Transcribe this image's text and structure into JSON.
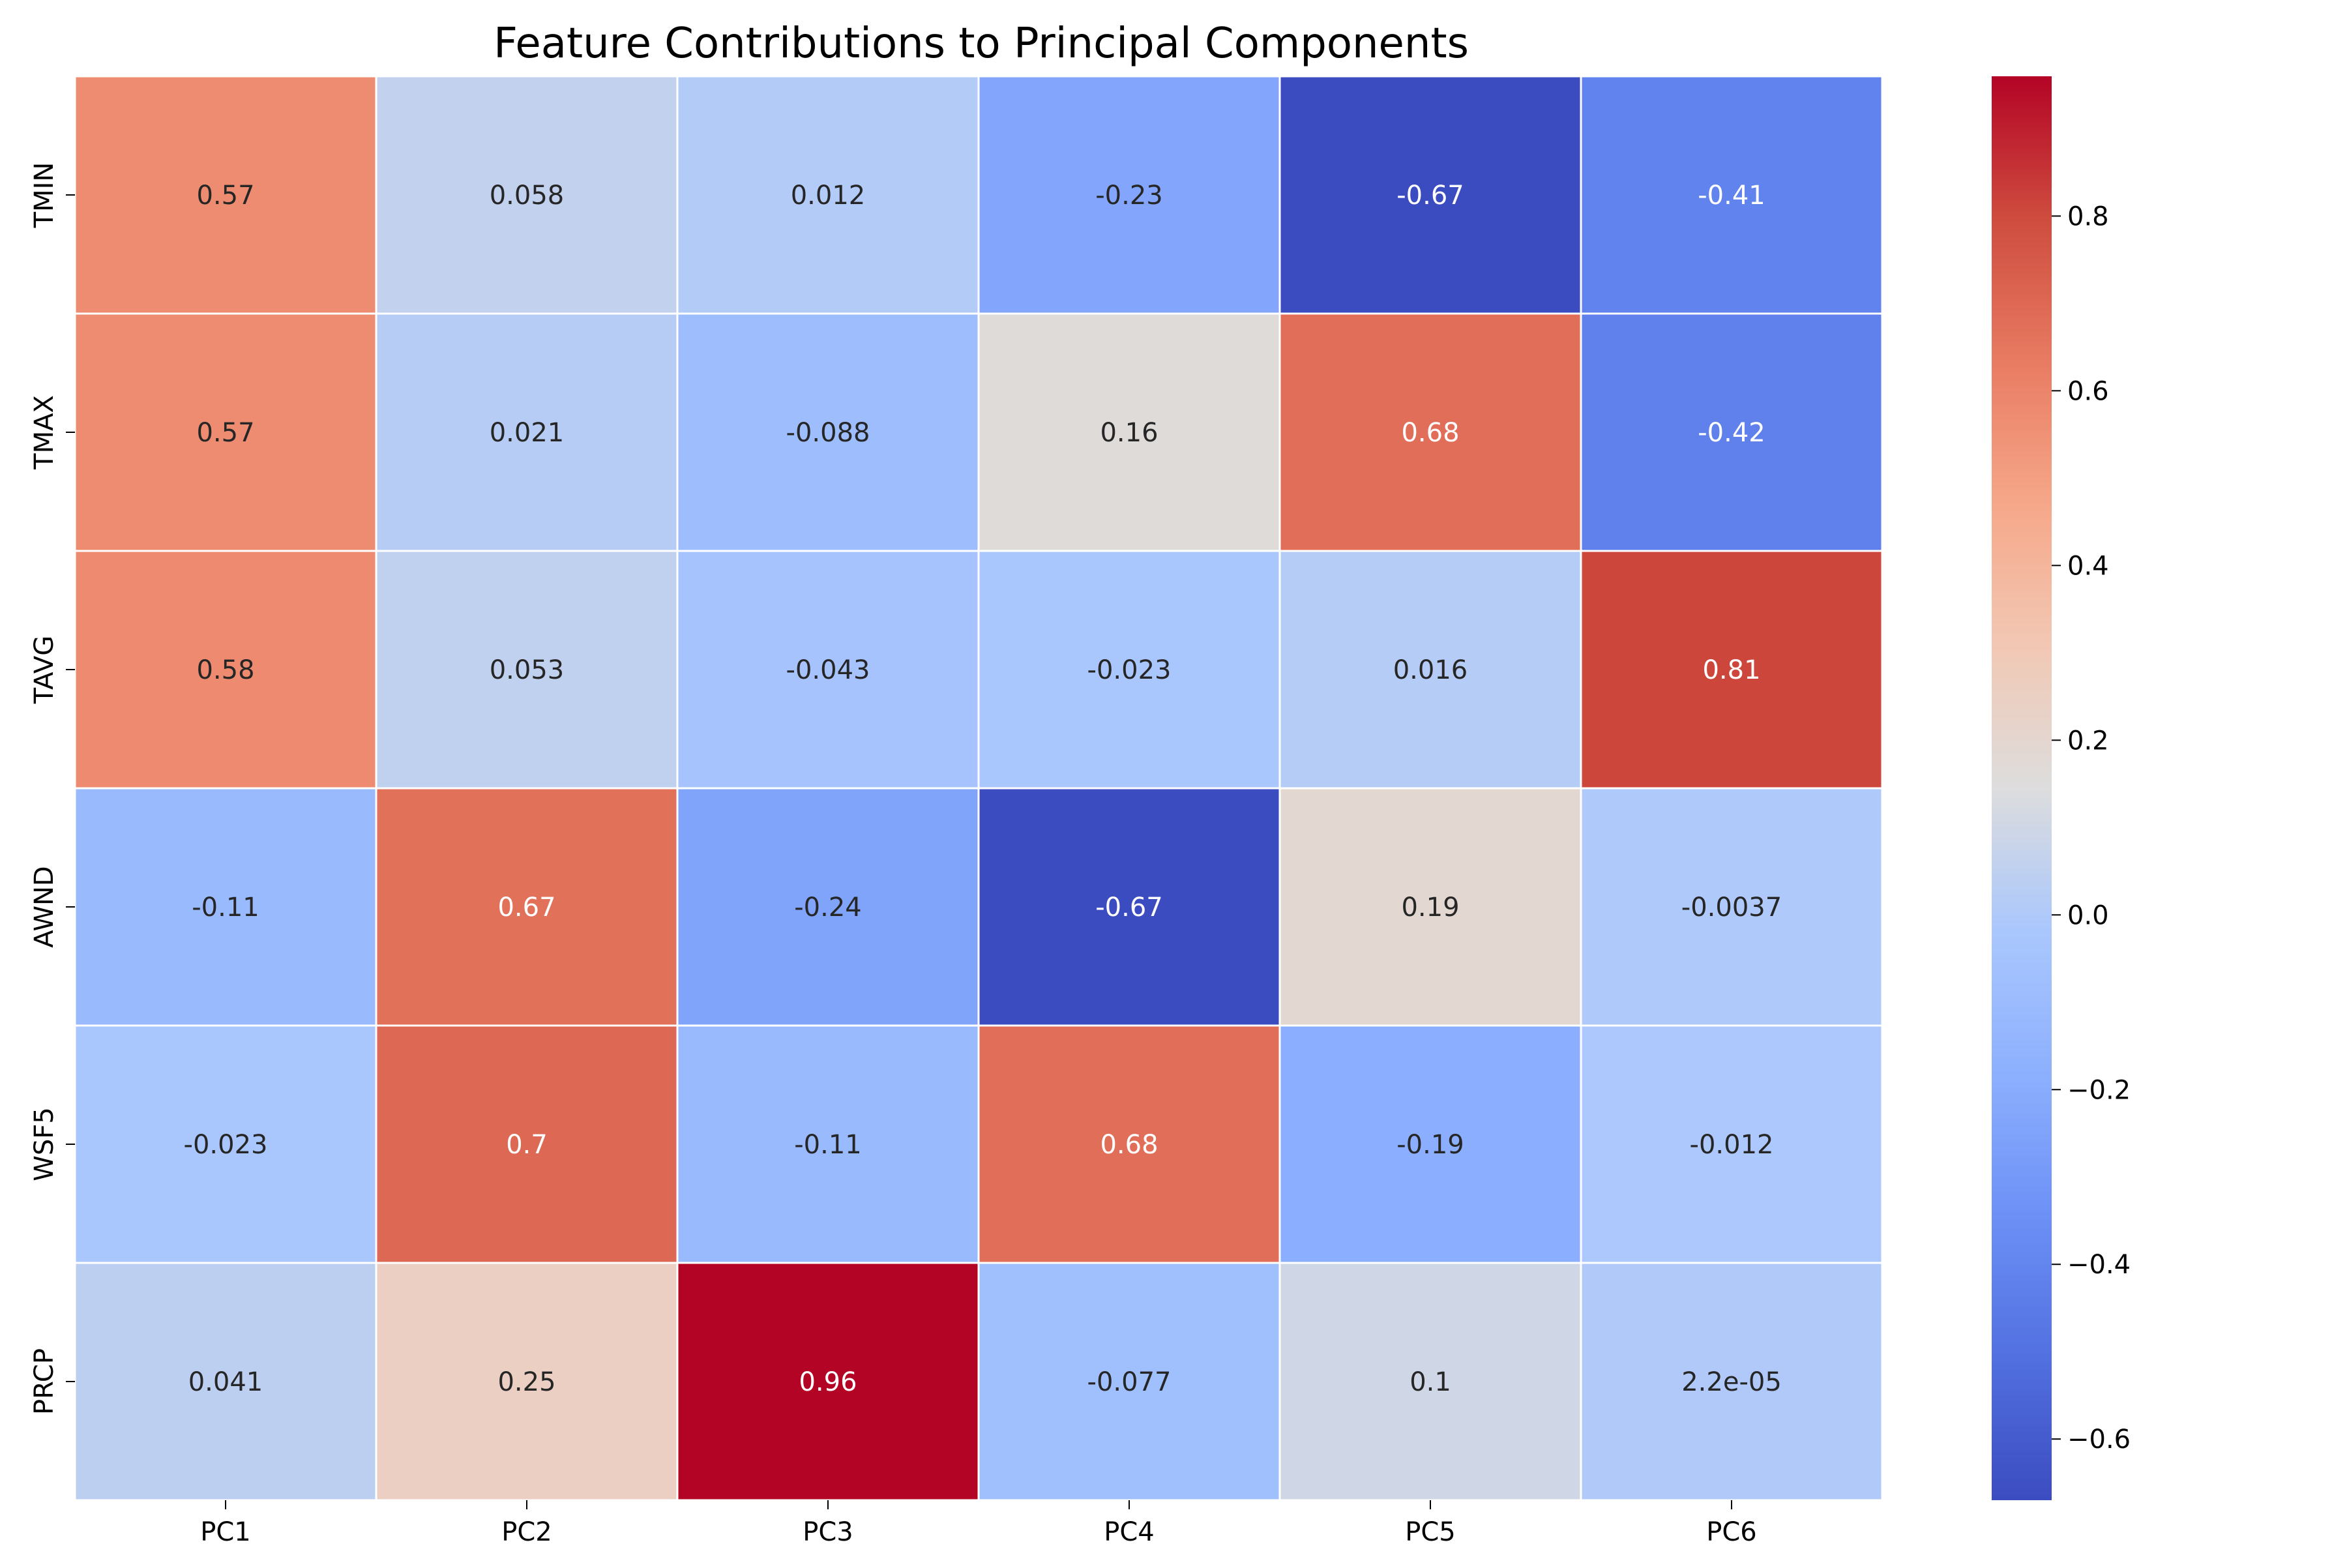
{
  "chart_data": {
    "type": "heatmap",
    "title": "Feature Contributions to Principal Components",
    "columns": [
      "PC1",
      "PC2",
      "PC3",
      "PC4",
      "PC5",
      "PC6"
    ],
    "rows": [
      "TMIN",
      "TMAX",
      "TAVG",
      "AWND",
      "WSF5",
      "PRCP"
    ],
    "values": [
      [
        0.57,
        0.058,
        0.012,
        -0.23,
        -0.67,
        -0.41
      ],
      [
        0.57,
        0.021,
        -0.088,
        0.16,
        0.68,
        -0.42
      ],
      [
        0.58,
        0.053,
        -0.043,
        -0.023,
        0.016,
        0.81
      ],
      [
        -0.11,
        0.67,
        -0.24,
        -0.67,
        0.19,
        -0.0037
      ],
      [
        -0.023,
        0.7,
        -0.11,
        0.68,
        -0.19,
        -0.012
      ],
      [
        0.041,
        0.25,
        0.96,
        -0.077,
        0.1,
        2.2e-05
      ]
    ],
    "annotations": [
      [
        "0.57",
        "0.058",
        "0.012",
        "-0.23",
        "-0.67",
        "-0.41"
      ],
      [
        "0.57",
        "0.021",
        "-0.088",
        "0.16",
        "0.68",
        "-0.42"
      ],
      [
        "0.58",
        "0.053",
        "-0.043",
        "-0.023",
        "0.016",
        "0.81"
      ],
      [
        "-0.11",
        "0.67",
        "-0.24",
        "-0.67",
        "0.19",
        "-0.0037"
      ],
      [
        "-0.023",
        "0.7",
        "-0.11",
        "0.68",
        "-0.19",
        "-0.012"
      ],
      [
        "0.041",
        "0.25",
        "0.96",
        "-0.077",
        "0.1",
        "2.2e-05"
      ]
    ],
    "colormap": "coolwarm",
    "vmin": -0.67,
    "vmax": 0.96,
    "colorbar_ticks": [
      0.8,
      0.6,
      0.4,
      0.2,
      0.0,
      -0.2,
      -0.4,
      -0.6
    ],
    "colorbar_tick_labels": [
      "0.8",
      "0.6",
      "0.4",
      "0.2",
      "0.0",
      "−0.2",
      "−0.4",
      "−0.6"
    ],
    "grid_line_color": "#ffffff"
  }
}
